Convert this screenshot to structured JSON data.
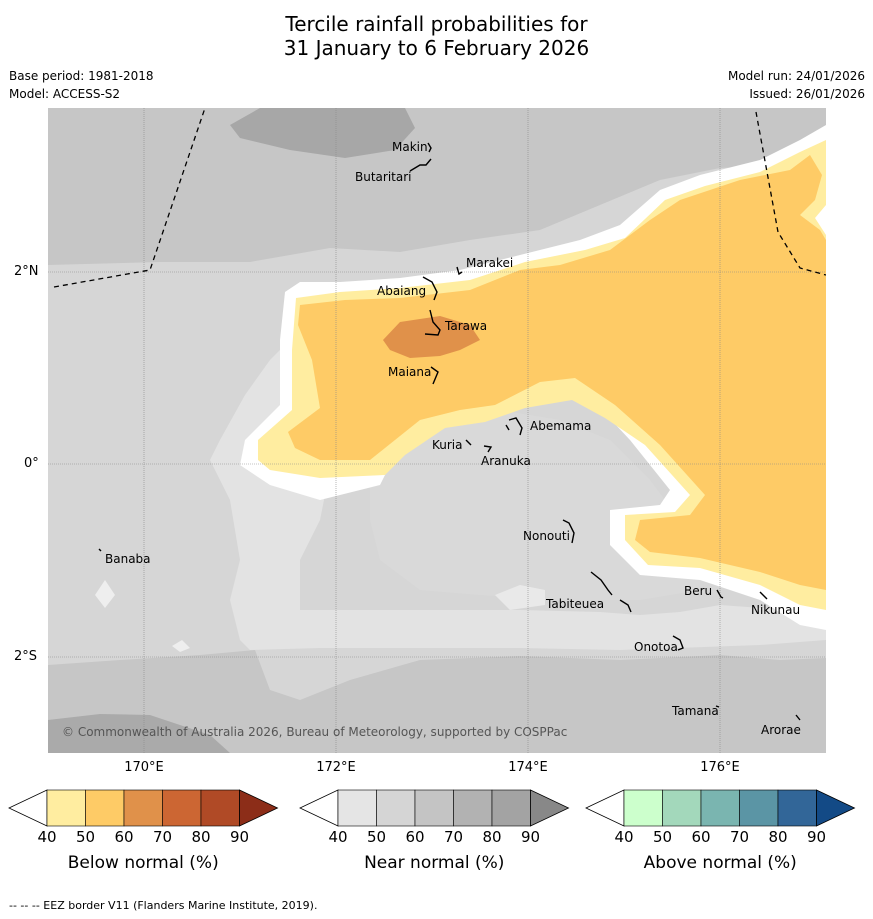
{
  "title_line1": "Tercile rainfall probabilities for",
  "title_line2": "31 January to 6 February 2026",
  "base_period": "Base period: 1981-2018",
  "model": "Model: ACCESS-S2",
  "model_run": "Model run: 24/01/2026",
  "issued": "Issued: 26/01/2026",
  "axes": {
    "y_ticks": [
      "2°N",
      "0°",
      "2°S"
    ],
    "x_ticks": [
      "170°E",
      "172°E",
      "174°E",
      "176°E"
    ]
  },
  "islands": [
    {
      "name": "Makin"
    },
    {
      "name": "Butaritari"
    },
    {
      "name": "Marakei"
    },
    {
      "name": "Abaiang"
    },
    {
      "name": "Tarawa"
    },
    {
      "name": "Maiana"
    },
    {
      "name": "Abemama"
    },
    {
      "name": "Kuria"
    },
    {
      "name": "Aranuka"
    },
    {
      "name": "Banaba"
    },
    {
      "name": "Nonouti"
    },
    {
      "name": "Tabiteuea"
    },
    {
      "name": "Beru"
    },
    {
      "name": "Nikunau"
    },
    {
      "name": "Onotoa"
    },
    {
      "name": "Tamana"
    },
    {
      "name": "Arorae"
    }
  ],
  "copyright": "© Commonwealth of Australia 2026, Bureau of Meteorology, supported by COSPPac",
  "colorbars": [
    {
      "label": "Below normal (%)",
      "ticks": [
        "40",
        "50",
        "60",
        "70",
        "80",
        "90"
      ],
      "colors": [
        "#ffffff",
        "#ffeda0",
        "#fecb66",
        "#e0914a",
        "#cc6633",
        "#b04a26",
        "#8c2d18"
      ]
    },
    {
      "label": "Near normal (%)",
      "ticks": [
        "40",
        "50",
        "60",
        "70",
        "80",
        "90"
      ],
      "colors": [
        "#ffffff",
        "#e5e5e5",
        "#d5d5d5",
        "#c4c4c4",
        "#b2b2b2",
        "#a3a3a3",
        "#888888"
      ]
    },
    {
      "label": "Above normal (%)",
      "ticks": [
        "40",
        "50",
        "60",
        "70",
        "80",
        "90"
      ],
      "colors": [
        "#ffffff",
        "#ccffcc",
        "#a3d8bb",
        "#7ab5b0",
        "#5b95a5",
        "#326698",
        "#134a86"
      ]
    }
  ],
  "footer": "--  --  -- EEZ border V11 (Flanders Marine Institute, 2019).",
  "legend_line_style": "dashed"
}
